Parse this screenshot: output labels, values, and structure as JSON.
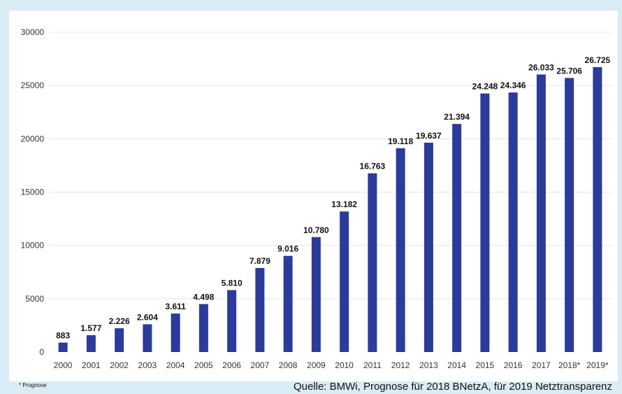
{
  "chart_data": {
    "type": "bar",
    "categories": [
      "2000",
      "2001",
      "2002",
      "2003",
      "2004",
      "2005",
      "2006",
      "2007",
      "2008",
      "2009",
      "2010",
      "2011",
      "2012",
      "2013",
      "2014",
      "2015",
      "2016",
      "2017",
      "2018*",
      "2019*"
    ],
    "values": [
      883,
      1577,
      2226,
      2604,
      3611,
      4498,
      5810,
      7879,
      9016,
      10780,
      13182,
      16763,
      19118,
      19637,
      21394,
      24248,
      24346,
      26033,
      25706,
      26725
    ],
    "data_labels": [
      "883",
      "1.577",
      "2.226",
      "2.604",
      "3.611",
      "4.498",
      "5.810",
      "7.879",
      "9.016",
      "10.780",
      "13.182",
      "16.763",
      "19.118",
      "19.637",
      "21.394",
      "24.248",
      "24.346",
      "26.033",
      "25.706",
      "26.725"
    ],
    "y_ticks": [
      0,
      5000,
      10000,
      15000,
      20000,
      25000,
      30000
    ],
    "ylim": [
      0,
      30000
    ],
    "grid": true,
    "bar_color": "#2b3a9b",
    "grid_color": "#e3e3e3",
    "title": "",
    "xlabel": "",
    "ylabel": ""
  },
  "footnote": "* Prognose",
  "source": "Quelle: BMWi, Prognose für 2018 BNetzA, für 2019 Netztransparenz"
}
